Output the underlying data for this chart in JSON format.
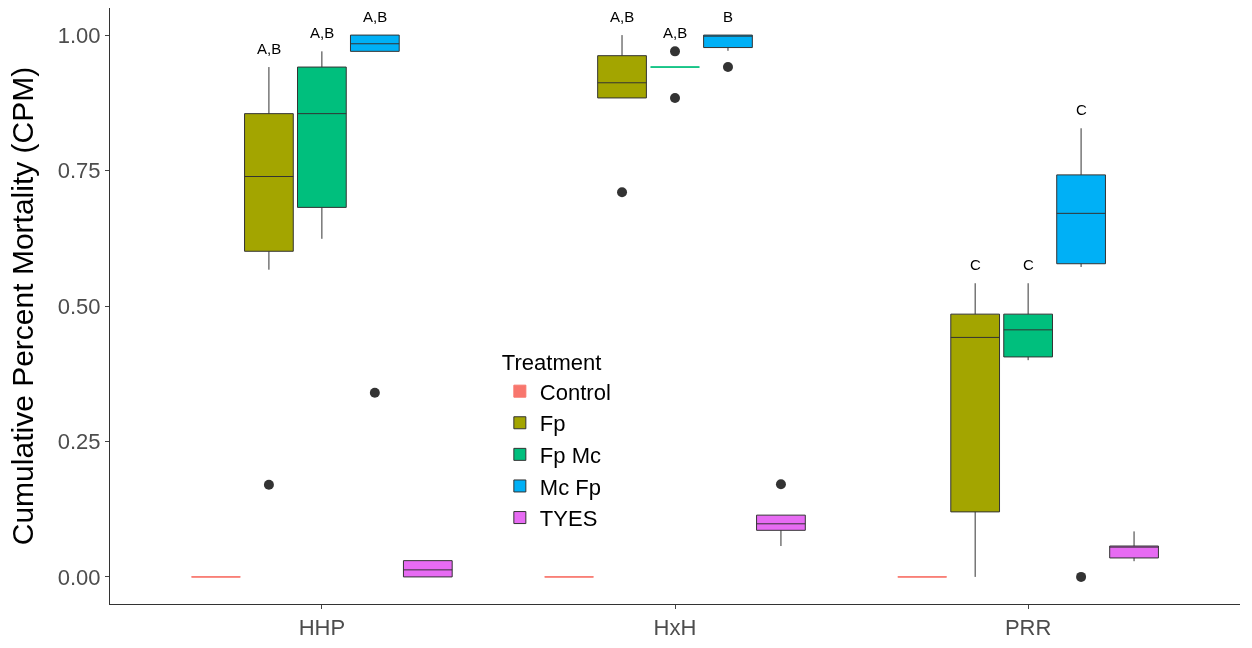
{
  "chart_data": {
    "type": "box",
    "ylabel": "Cumulative Percent Mortality (CPM)",
    "legend_title": "Treatment",
    "legend": "center",
    "categories": [
      "HHP",
      "HxH",
      "PRR"
    ],
    "ylim": [
      -0.05,
      1.05
    ],
    "yticks": [
      {
        "value": 0,
        "label": "0.00"
      },
      {
        "value": 0.25,
        "label": "0.25"
      },
      {
        "value": 0.5,
        "label": "0.50"
      },
      {
        "value": 0.75,
        "label": "0.75"
      },
      {
        "value": 1,
        "label": "1.00"
      }
    ],
    "series": [
      {
        "name": "Control",
        "color": "#f8766d",
        "boxes": [
          {
            "low": 0,
            "q1": 0,
            "median": 0,
            "q3": 0,
            "high": 0
          },
          {
            "low": 0,
            "q1": 0,
            "median": 0,
            "q3": 0,
            "high": 0
          },
          {
            "low": 0,
            "q1": 0,
            "median": 0,
            "q3": 0,
            "high": 0
          }
        ]
      },
      {
        "name": "Fp",
        "color": "#a3a500",
        "boxes": [
          {
            "low": 0.567,
            "q1": 0.601,
            "median": 0.739,
            "q3": 0.855,
            "high": 0.941,
            "outliers": [
              0.17
            ]
          },
          {
            "low": 0.884,
            "q1": 0.884,
            "median": 0.912,
            "q3": 0.962,
            "high": 1.0,
            "outliers": [
              0.71
            ]
          },
          {
            "low": 0,
            "q1": 0.12,
            "median": 0.442,
            "q3": 0.485,
            "high": 0.542
          }
        ]
      },
      {
        "name": "Fp Mc",
        "color": "#00bf7d",
        "boxes": [
          {
            "low": 0.624,
            "q1": 0.682,
            "median": 0.855,
            "q3": 0.941,
            "high": 0.97
          },
          {
            "low": 0.941,
            "q1": 0.941,
            "median": 0.941,
            "q3": 0.941,
            "high": 0.941,
            "outliers": [
              0.97,
              0.884
            ]
          },
          {
            "low": 0.4,
            "q1": 0.406,
            "median": 0.456,
            "q3": 0.485,
            "high": 0.542
          }
        ]
      },
      {
        "name": "Mc Fp",
        "color": "#00b0f6",
        "boxes": [
          {
            "low": 0.97,
            "q1": 0.97,
            "median": 0.984,
            "q3": 1.0,
            "high": 1.0,
            "outliers": [
              0.34
            ]
          },
          {
            "low": 0.971,
            "q1": 0.977,
            "median": 0.998,
            "q3": 1.0,
            "high": 1.0,
            "outliers": [
              0.941
            ]
          },
          {
            "low": 0.572,
            "q1": 0.578,
            "median": 0.671,
            "q3": 0.742,
            "high": 0.828,
            "outliers": [
              0
            ]
          }
        ]
      },
      {
        "name": "TYES",
        "color": "#e76bf3",
        "boxes": [
          {
            "low": 0,
            "q1": 0,
            "median": 0.013,
            "q3": 0.03,
            "high": 0.03
          },
          {
            "low": 0.057,
            "q1": 0.086,
            "median": 0.098,
            "q3": 0.114,
            "high": 0.114,
            "outliers": [
              0.171
            ]
          },
          {
            "low": 0.029,
            "q1": 0.035,
            "median": 0.055,
            "q3": 0.057,
            "high": 0.084
          }
        ]
      }
    ],
    "annotations": [
      "A,B",
      "A,B",
      "A,B",
      "A,B",
      "A,B",
      "B",
      "C",
      "C",
      "C"
    ]
  }
}
